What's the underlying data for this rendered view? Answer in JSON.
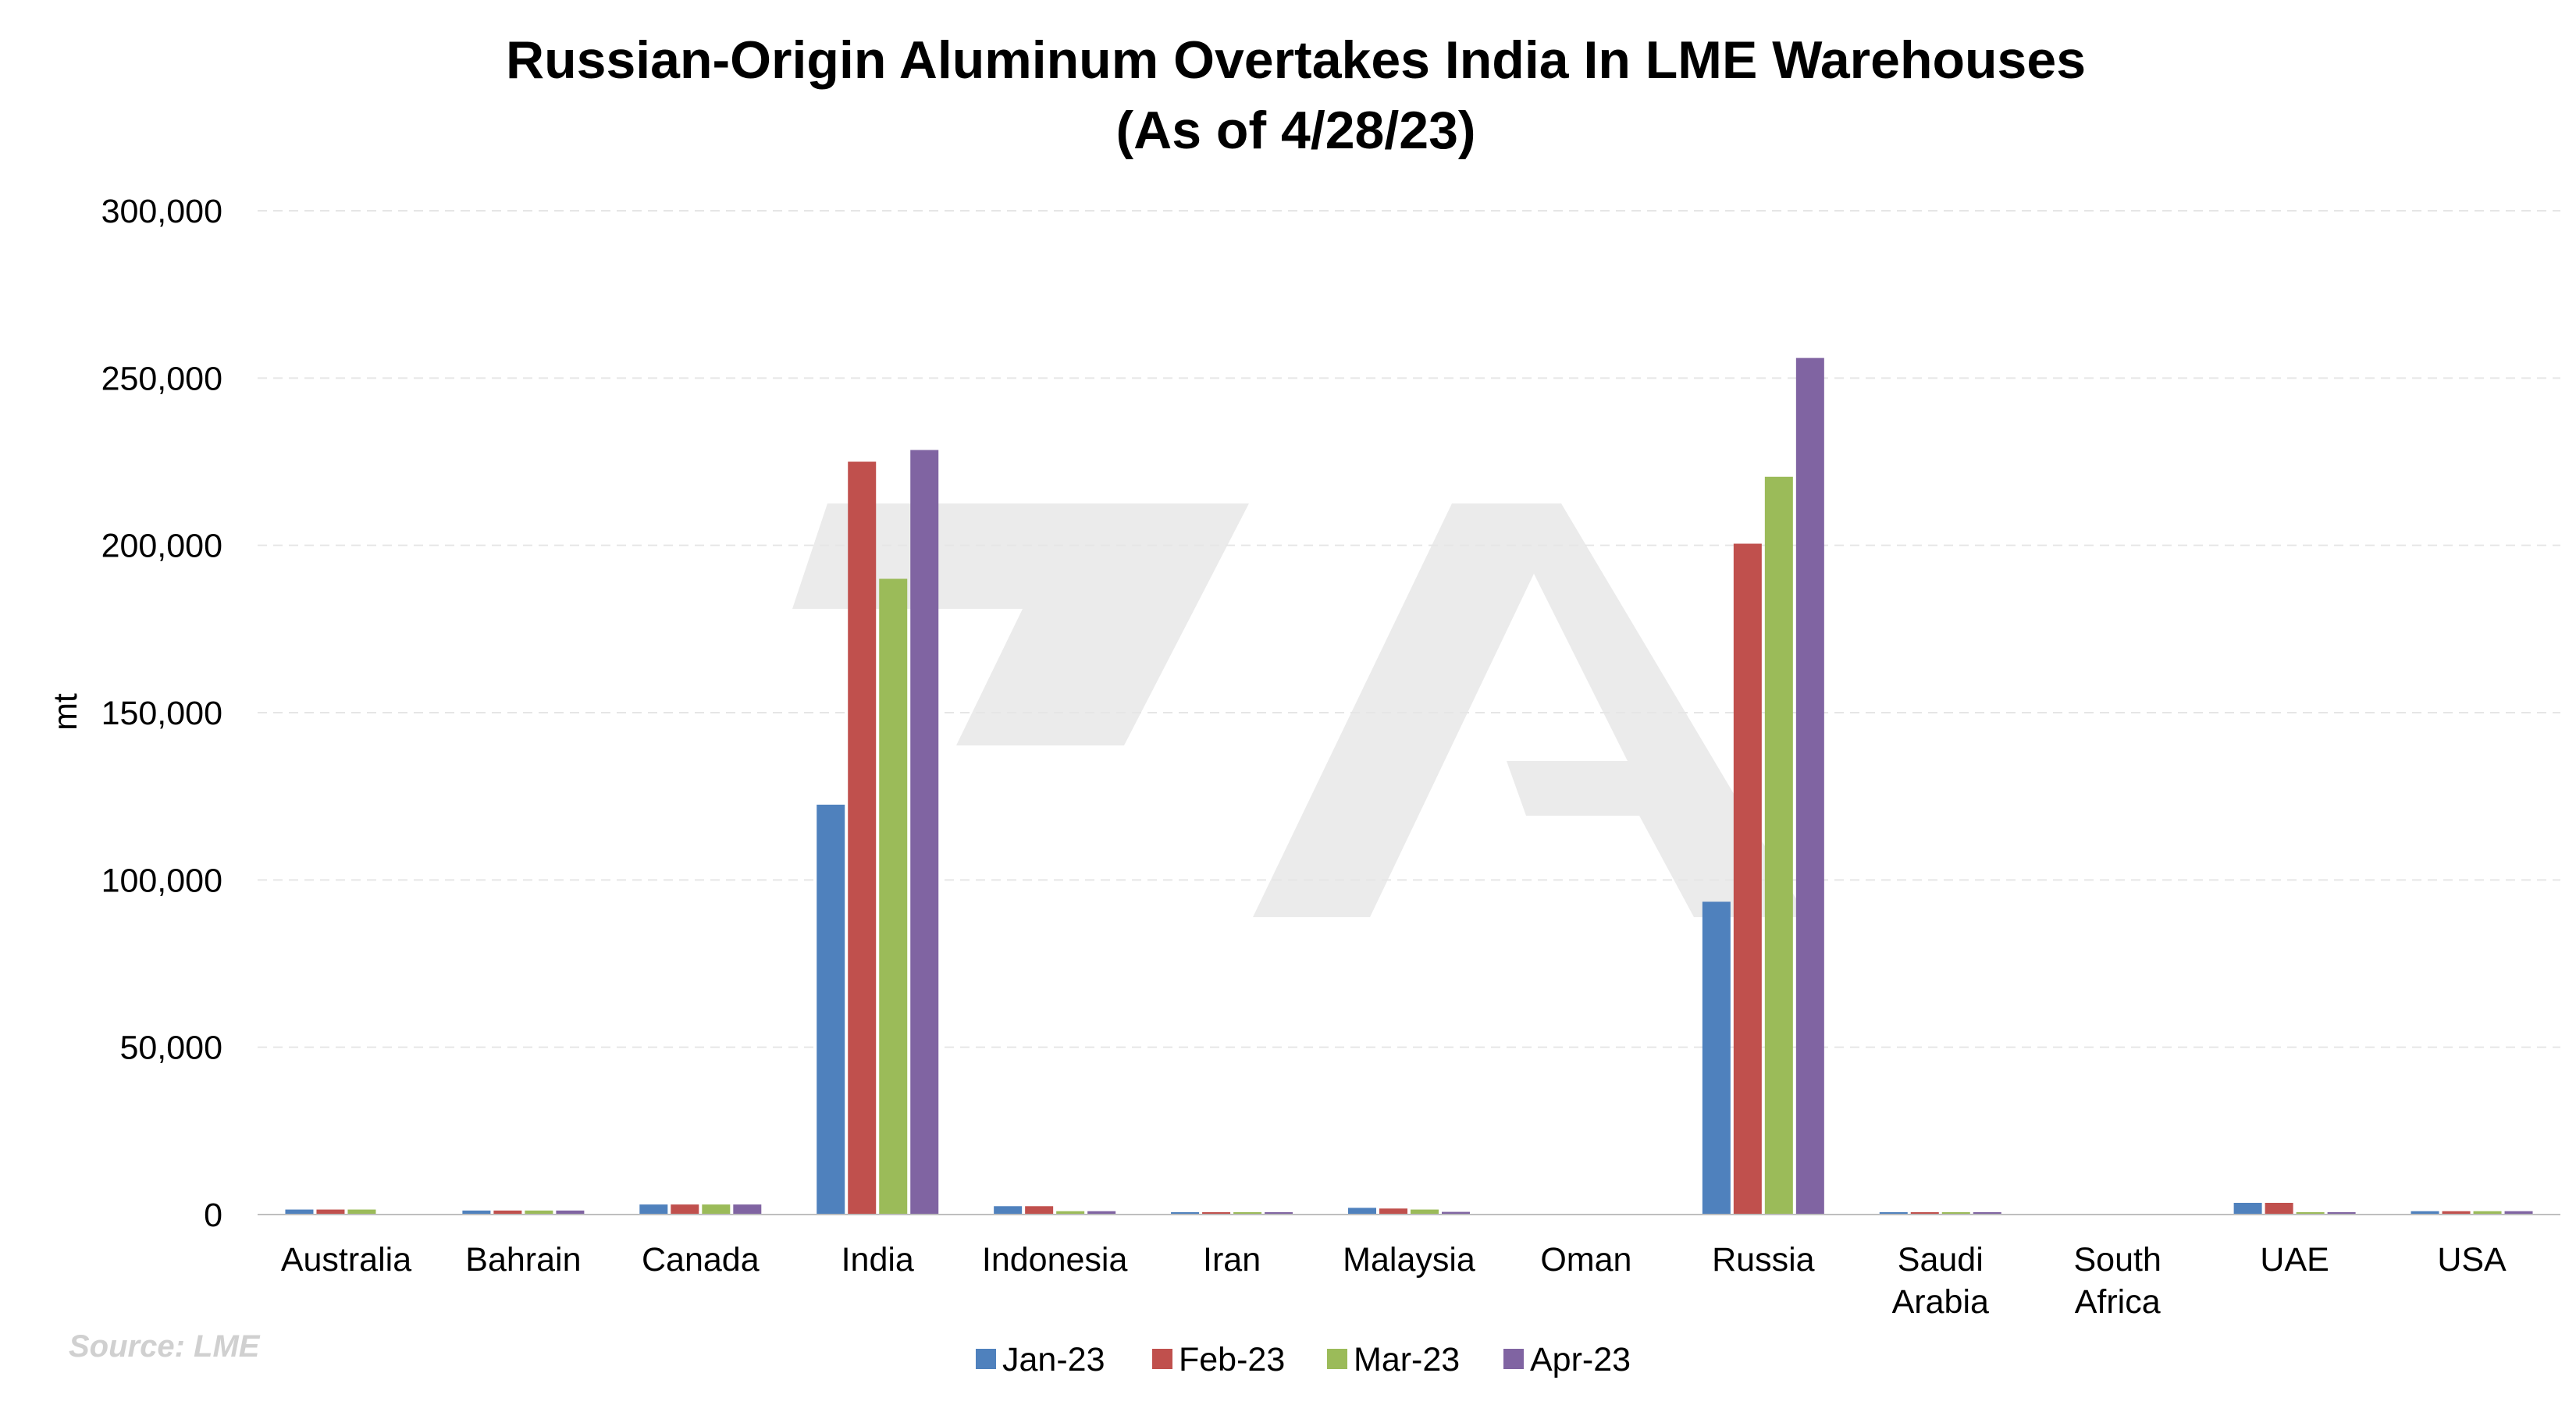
{
  "chart_data": {
    "type": "bar",
    "title": "Russian-Origin Aluminum Overtakes India In LME Warehouses",
    "subtitle": "(As of 4/28/23)",
    "xlabel": "",
    "ylabel": "mt",
    "ylim": [
      0,
      300000
    ],
    "yticks": [
      0,
      50000,
      100000,
      150000,
      200000,
      250000,
      300000
    ],
    "ytick_labels": [
      "0",
      "50,000",
      "100,000",
      "150,000",
      "200,000",
      "250,000",
      "300,000"
    ],
    "grid": true,
    "legend_position": "bottom",
    "categories": [
      [
        "Australia"
      ],
      [
        "Bahrain"
      ],
      [
        "Canada"
      ],
      [
        "India"
      ],
      [
        "Indonesia"
      ],
      [
        "Iran"
      ],
      [
        "Malaysia"
      ],
      [
        "Oman"
      ],
      [
        "Russia"
      ],
      [
        "Saudi",
        "Arabia"
      ],
      [
        "South",
        "Africa"
      ],
      [
        "UAE"
      ],
      [
        "USA"
      ]
    ],
    "series": [
      {
        "name": "Jan-23",
        "color": "#4f81bd",
        "values": [
          1500,
          1200,
          3000,
          122500,
          2500,
          300,
          2000,
          0,
          93500,
          300,
          0,
          3500,
          1000
        ]
      },
      {
        "name": "Feb-23",
        "color": "#c0504d",
        "values": [
          1500,
          1200,
          3000,
          225000,
          2500,
          300,
          1800,
          0,
          200500,
          300,
          0,
          3500,
          1000
        ]
      },
      {
        "name": "Mar-23",
        "color": "#9bbb59",
        "values": [
          1500,
          1200,
          3000,
          190000,
          1000,
          300,
          1500,
          0,
          220500,
          200,
          0,
          200,
          1000
        ]
      },
      {
        "name": "Apr-23",
        "color": "#8064a2",
        "values": [
          0,
          1200,
          3000,
          228500,
          1000,
          300,
          800,
          0,
          256000,
          200,
          0,
          200,
          1000
        ]
      }
    ],
    "source": "Source: LME"
  }
}
